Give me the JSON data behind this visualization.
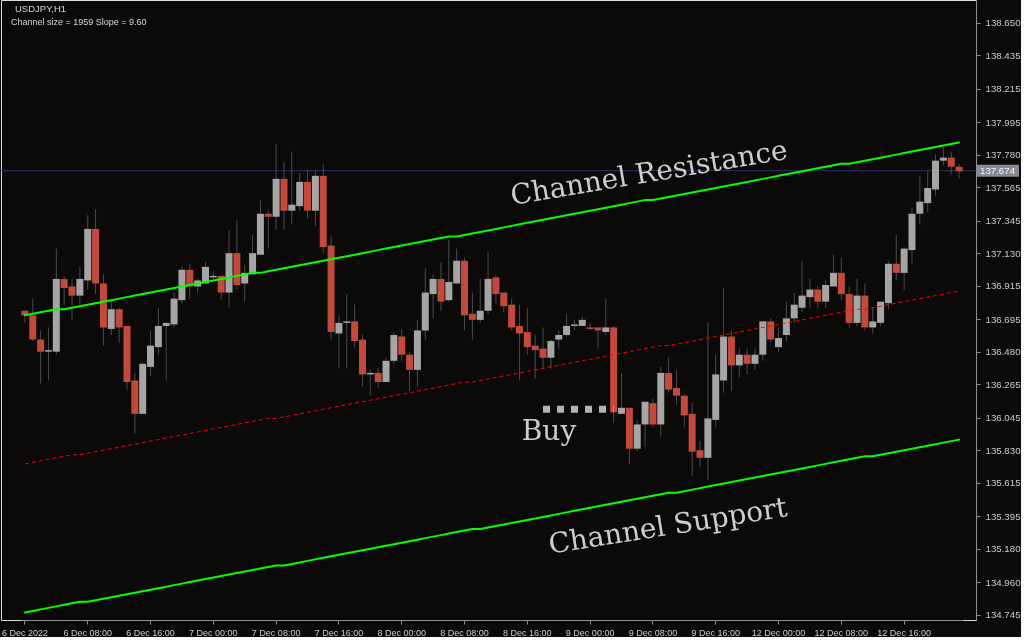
{
  "chart_data": {
    "type": "candlestick",
    "title": "USDJPY,H1",
    "subtitle": "Channel size = 1959 Slope = 9.60",
    "categories": [
      "6 Dec 2022",
      null,
      null,
      null,
      null,
      null,
      null,
      null,
      "6 Dec 08:00",
      null,
      null,
      null,
      null,
      null,
      null,
      null,
      "6 Dec 16:00",
      null,
      null,
      null,
      null,
      null,
      null,
      null,
      "7 Dec 00:00",
      null,
      null,
      null,
      null,
      null,
      null,
      null,
      "7 Dec 08:00",
      null,
      null,
      null,
      null,
      null,
      null,
      null,
      "7 Dec 16:00",
      null,
      null,
      null,
      null,
      null,
      null,
      null,
      "8 Dec 00:00",
      null,
      null,
      null,
      null,
      null,
      null,
      null,
      "8 Dec 08:00",
      null,
      null,
      null,
      null,
      null,
      null,
      null,
      "8 Dec 16:00",
      null,
      null,
      null,
      null,
      null,
      null,
      null,
      "9 Dec 00:00",
      null,
      null,
      null,
      null,
      null,
      null,
      null,
      "9 Dec 08:00",
      null,
      null,
      null,
      null,
      null,
      null,
      null,
      "9 Dec 16:00",
      null,
      null,
      null,
      null,
      null,
      null,
      null,
      "12 Dec 00:00",
      null,
      null,
      null,
      null,
      null,
      null,
      null,
      "12 Dec 08:00",
      null,
      null,
      null,
      null,
      null,
      null,
      null,
      "12 Dec 16:00",
      null,
      null,
      null,
      null,
      null,
      null,
      null
    ],
    "ohlc": [
      [
        136.75,
        136.75,
        136.67,
        136.72
      ],
      [
        136.72,
        136.83,
        136.55,
        136.56
      ],
      [
        136.56,
        136.62,
        136.27,
        136.48
      ],
      [
        136.48,
        136.64,
        136.29,
        136.49
      ],
      [
        136.48,
        137.16,
        136.46,
        136.96
      ],
      [
        136.96,
        136.98,
        136.79,
        136.9
      ],
      [
        136.91,
        136.96,
        136.69,
        136.85
      ],
      [
        136.85,
        137.04,
        136.79,
        136.96
      ],
      [
        136.95,
        137.38,
        136.89,
        137.29
      ],
      [
        137.29,
        137.42,
        136.86,
        136.93
      ],
      [
        136.93,
        136.99,
        136.52,
        136.64
      ],
      [
        136.63,
        136.82,
        136.59,
        136.76
      ],
      [
        136.76,
        136.77,
        136.54,
        136.64
      ],
      [
        136.65,
        136.65,
        136.23,
        136.28
      ],
      [
        136.29,
        136.34,
        135.94,
        136.07
      ],
      [
        136.07,
        136.41,
        136.07,
        136.4
      ],
      [
        136.38,
        136.62,
        136.32,
        136.52
      ],
      [
        136.51,
        136.77,
        136.46,
        136.65
      ],
      [
        136.65,
        136.67,
        136.29,
        136.67
      ],
      [
        136.66,
        136.87,
        136.64,
        136.83
      ],
      [
        136.82,
        137.04,
        136.8,
        137.02
      ],
      [
        137.02,
        137.06,
        136.83,
        136.91
      ],
      [
        136.91,
        136.96,
        136.87,
        136.95
      ],
      [
        136.93,
        137.07,
        136.93,
        137.04
      ],
      [
        136.97,
        137.01,
        136.96,
        136.98
      ],
      [
        136.98,
        136.98,
        136.82,
        136.87
      ],
      [
        136.87,
        137.28,
        136.77,
        137.13
      ],
      [
        137.13,
        137.35,
        136.89,
        136.92
      ],
      [
        136.93,
        137.05,
        136.81,
        137.0
      ],
      [
        136.99,
        137.25,
        136.99,
        137.13
      ],
      [
        137.12,
        137.48,
        137.12,
        137.39
      ],
      [
        137.39,
        137.41,
        137.16,
        137.37
      ],
      [
        137.37,
        137.85,
        137.29,
        137.62
      ],
      [
        137.62,
        137.73,
        137.29,
        137.41
      ],
      [
        137.41,
        137.8,
        137.32,
        137.45
      ],
      [
        137.44,
        137.66,
        137.41,
        137.6
      ],
      [
        137.6,
        137.68,
        137.36,
        137.41
      ],
      [
        137.41,
        137.67,
        137.31,
        137.64
      ],
      [
        137.64,
        137.72,
        137.13,
        137.17
      ],
      [
        137.18,
        137.24,
        136.56,
        136.61
      ],
      [
        136.6,
        136.72,
        136.37,
        136.67
      ],
      [
        136.67,
        136.86,
        136.37,
        136.68
      ],
      [
        136.68,
        136.79,
        136.51,
        136.55
      ],
      [
        136.56,
        136.59,
        136.25,
        136.33
      ],
      [
        136.33,
        136.36,
        136.19,
        136.34
      ],
      [
        136.34,
        136.37,
        136.24,
        136.28
      ],
      [
        136.28,
        136.44,
        136.28,
        136.42
      ],
      [
        136.42,
        136.61,
        136.4,
        136.59
      ],
      [
        136.58,
        136.63,
        136.42,
        136.46
      ],
      [
        136.46,
        136.48,
        136.22,
        136.36
      ],
      [
        136.36,
        136.69,
        136.25,
        136.62
      ],
      [
        136.62,
        137.03,
        136.56,
        136.87
      ],
      [
        136.86,
        136.99,
        136.7,
        136.96
      ],
      [
        136.96,
        137.07,
        136.75,
        136.81
      ],
      [
        136.82,
        137.22,
        136.81,
        136.94
      ],
      [
        136.93,
        137.16,
        136.93,
        137.08
      ],
      [
        137.08,
        137.1,
        136.62,
        136.72
      ],
      [
        136.73,
        136.87,
        136.56,
        136.69
      ],
      [
        136.69,
        136.96,
        136.67,
        136.75
      ],
      [
        136.75,
        137.14,
        136.73,
        136.96
      ],
      [
        136.97,
        136.98,
        136.8,
        136.86
      ],
      [
        136.87,
        136.87,
        136.74,
        136.78
      ],
      [
        136.79,
        136.83,
        136.62,
        136.64
      ],
      [
        136.65,
        136.79,
        136.29,
        136.6
      ],
      [
        136.61,
        136.77,
        136.46,
        136.51
      ],
      [
        136.52,
        136.59,
        136.3,
        136.49
      ],
      [
        136.5,
        136.64,
        136.37,
        136.44
      ],
      [
        136.44,
        136.56,
        136.37,
        136.55
      ],
      [
        136.56,
        136.62,
        136.5,
        136.59
      ],
      [
        136.59,
        136.73,
        136.58,
        136.65
      ],
      [
        136.65,
        136.69,
        136.62,
        136.66
      ],
      [
        136.65,
        136.71,
        136.65,
        136.69
      ],
      [
        136.64,
        136.67,
        136.62,
        136.63
      ],
      [
        136.64,
        136.64,
        136.5,
        136.62
      ],
      [
        136.61,
        136.83,
        136.59,
        136.64
      ],
      [
        136.64,
        136.65,
        136.01,
        136.08
      ],
      [
        136.07,
        136.34,
        136.07,
        136.11
      ],
      [
        136.11,
        136.11,
        135.74,
        135.84
      ],
      [
        135.84,
        136.03,
        135.82,
        136.0
      ],
      [
        136.0,
        136.15,
        135.85,
        136.15
      ],
      [
        136.14,
        136.17,
        135.98,
        136.0
      ],
      [
        136.0,
        136.38,
        135.92,
        136.34
      ],
      [
        136.34,
        136.44,
        136.21,
        136.23
      ],
      [
        136.24,
        136.36,
        136.13,
        136.19
      ],
      [
        136.19,
        136.2,
        135.98,
        136.06
      ],
      [
        136.07,
        136.14,
        135.66,
        135.82
      ],
      [
        135.83,
        135.89,
        135.72,
        135.78
      ],
      [
        135.78,
        136.67,
        135.63,
        136.04
      ],
      [
        136.03,
        136.46,
        135.98,
        136.33
      ],
      [
        136.29,
        136.9,
        136.21,
        136.58
      ],
      [
        136.58,
        136.62,
        136.22,
        136.39
      ],
      [
        136.39,
        136.5,
        136.31,
        136.46
      ],
      [
        136.46,
        136.5,
        136.33,
        136.4
      ],
      [
        136.4,
        136.5,
        136.36,
        136.46
      ],
      [
        136.46,
        136.68,
        136.42,
        136.68
      ],
      [
        136.68,
        136.7,
        136.54,
        136.56
      ],
      [
        136.51,
        136.64,
        136.48,
        136.57
      ],
      [
        136.59,
        136.81,
        136.55,
        136.7
      ],
      [
        136.7,
        136.87,
        136.67,
        136.79
      ],
      [
        136.77,
        137.08,
        136.74,
        136.85
      ],
      [
        136.84,
        136.96,
        136.77,
        136.89
      ],
      [
        136.89,
        136.91,
        136.77,
        136.81
      ],
      [
        136.81,
        136.95,
        136.77,
        136.92
      ],
      [
        136.91,
        137.12,
        136.91,
        137.0
      ],
      [
        137.0,
        137.1,
        136.82,
        136.86
      ],
      [
        136.86,
        136.91,
        136.64,
        136.67
      ],
      [
        136.67,
        136.96,
        136.65,
        136.85
      ],
      [
        136.85,
        136.93,
        136.62,
        136.64
      ],
      [
        136.64,
        136.77,
        136.6,
        136.68
      ],
      [
        136.67,
        136.81,
        136.65,
        136.81
      ],
      [
        136.8,
        137.08,
        136.76,
        137.06
      ],
      [
        137.06,
        137.25,
        136.95,
        137.0
      ],
      [
        137.0,
        137.17,
        136.89,
        137.16
      ],
      [
        137.15,
        137.43,
        137.06,
        137.39
      ],
      [
        137.39,
        137.64,
        137.32,
        137.47
      ],
      [
        137.46,
        137.67,
        137.4,
        137.56
      ],
      [
        137.55,
        137.78,
        137.51,
        137.74
      ],
      [
        137.74,
        137.83,
        137.71,
        137.76
      ],
      [
        137.76,
        137.8,
        137.65,
        137.7
      ],
      [
        137.7,
        137.72,
        137.62,
        137.67
      ]
    ],
    "colors": [
      "#c24a3b",
      "#c24a3b",
      "#c24a3b",
      "#a5a5a5",
      "#a5a5a5",
      "#c24a3b",
      "#c24a3b",
      "#a5a5a5",
      "#a5a5a5",
      "#c24a3b",
      "#c24a3b",
      "#a5a5a5",
      "#c24a3b",
      "#c24a3b",
      "#c24a3b",
      "#a5a5a5",
      "#a5a5a5",
      "#a5a5a5",
      "#a5a5a5",
      "#a5a5a5",
      "#a5a5a5",
      "#c24a3b",
      "#a5a5a5",
      "#a5a5a5",
      "#a5a5a5",
      "#c24a3b",
      "#a5a5a5",
      "#c24a3b",
      "#a5a5a5",
      "#a5a5a5",
      "#a5a5a5",
      "#c24a3b",
      "#a5a5a5",
      "#c24a3b",
      "#a5a5a5",
      "#a5a5a5",
      "#c24a3b",
      "#a5a5a5",
      "#c24a3b",
      "#c24a3b",
      "#a5a5a5",
      "#a5a5a5",
      "#c24a3b",
      "#c24a3b",
      "#a5a5a5",
      "#c24a3b",
      "#a5a5a5",
      "#a5a5a5",
      "#c24a3b",
      "#c24a3b",
      "#a5a5a5",
      "#a5a5a5",
      "#a5a5a5",
      "#c24a3b",
      "#a5a5a5",
      "#a5a5a5",
      "#c24a3b",
      "#c24a3b",
      "#a5a5a5",
      "#a5a5a5",
      "#c24a3b",
      "#c24a3b",
      "#c24a3b",
      "#c24a3b",
      "#c24a3b",
      "#c24a3b",
      "#c24a3b",
      "#a5a5a5",
      "#a5a5a5",
      "#a5a5a5",
      "#a5a5a5",
      "#a5a5a5",
      "#c24a3b",
      "#c24a3b",
      "#a5a5a5",
      "#c24a3b",
      "#a5a5a5",
      "#c24a3b",
      "#a5a5a5",
      "#a5a5a5",
      "#c24a3b",
      "#a5a5a5",
      "#c24a3b",
      "#c24a3b",
      "#c24a3b",
      "#c24a3b",
      "#c24a3b",
      "#a5a5a5",
      "#a5a5a5",
      "#a5a5a5",
      "#c24a3b",
      "#a5a5a5",
      "#c24a3b",
      "#a5a5a5",
      "#a5a5a5",
      "#c24a3b",
      "#a5a5a5",
      "#a5a5a5",
      "#a5a5a5",
      "#a5a5a5",
      "#a5a5a5",
      "#c24a3b",
      "#a5a5a5",
      "#a5a5a5",
      "#c24a3b",
      "#c24a3b",
      "#a5a5a5",
      "#c24a3b",
      "#a5a5a5",
      "#a5a5a5",
      "#a5a5a5",
      "#c24a3b",
      "#a5a5a5",
      "#a5a5a5",
      "#a5a5a5",
      "#a5a5a5",
      "#a5a5a5",
      "#a5a5a5",
      "#c24a3b",
      "#c24a3b"
    ],
    "color": "#4a4a52",
    "series": [
      {
        "type": "line",
        "color": "#00ff00",
        "values": [
          136.72,
          136.73,
          136.74,
          136.75,
          136.76,
          136.76,
          136.77,
          136.78,
          136.79,
          136.8,
          136.81,
          136.82,
          136.83,
          136.84,
          136.85,
          136.86,
          136.87,
          136.88,
          136.89,
          136.9,
          136.91,
          136.92,
          136.93,
          136.94,
          136.95,
          136.96,
          136.97,
          136.98,
          136.99,
          137.0,
          137.0,
          137.01,
          137.02,
          137.03,
          137.04,
          137.05,
          137.06,
          137.07,
          137.08,
          137.09,
          137.1,
          137.11,
          137.12,
          137.13,
          137.14,
          137.15,
          137.16,
          137.17,
          137.18,
          137.19,
          137.2,
          137.21,
          137.22,
          137.23,
          137.24,
          137.24,
          137.25,
          137.26,
          137.27,
          137.28,
          137.29,
          137.3,
          137.31,
          137.32,
          137.33,
          137.34,
          137.35,
          137.36,
          137.37,
          137.38,
          137.39,
          137.4,
          137.41,
          137.42,
          137.43,
          137.44,
          137.45,
          137.46,
          137.47,
          137.48,
          137.48,
          137.49,
          137.5,
          137.51,
          137.52,
          137.53,
          137.54,
          137.55,
          137.56,
          137.57,
          137.58,
          137.59,
          137.6,
          137.61,
          137.62,
          137.63,
          137.64,
          137.65,
          137.66,
          137.67,
          137.68,
          137.69,
          137.7,
          137.71,
          137.72,
          137.72,
          137.73,
          137.74,
          137.75,
          137.76,
          137.77,
          137.78,
          137.79,
          137.8,
          137.81,
          137.82,
          137.83,
          137.84,
          137.85,
          137.86
        ]
      },
      {
        "type": "line",
        "color": "#00ff00",
        "values": [
          134.76,
          134.77,
          134.78,
          134.79,
          134.8,
          134.81,
          134.82,
          134.83,
          134.83,
          134.84,
          134.85,
          134.86,
          134.87,
          134.88,
          134.89,
          134.9,
          134.91,
          134.92,
          134.93,
          134.94,
          134.95,
          134.96,
          134.97,
          134.98,
          134.99,
          135.0,
          135.01,
          135.02,
          135.03,
          135.04,
          135.05,
          135.06,
          135.07,
          135.07,
          135.08,
          135.09,
          135.1,
          135.11,
          135.12,
          135.13,
          135.14,
          135.15,
          135.16,
          135.17,
          135.18,
          135.19,
          135.2,
          135.21,
          135.22,
          135.23,
          135.24,
          135.25,
          135.26,
          135.27,
          135.28,
          135.29,
          135.3,
          135.31,
          135.31,
          135.32,
          135.33,
          135.34,
          135.35,
          135.36,
          135.37,
          135.38,
          135.39,
          135.4,
          135.41,
          135.42,
          135.43,
          135.44,
          135.45,
          135.46,
          135.47,
          135.48,
          135.49,
          135.5,
          135.51,
          135.52,
          135.53,
          135.54,
          135.55,
          135.55,
          135.56,
          135.57,
          135.58,
          135.59,
          135.6,
          135.61,
          135.62,
          135.63,
          135.64,
          135.65,
          135.66,
          135.67,
          135.68,
          135.69,
          135.7,
          135.71,
          135.72,
          135.73,
          135.74,
          135.75,
          135.76,
          135.77,
          135.78,
          135.79,
          135.79,
          135.8,
          135.81,
          135.82,
          135.83,
          135.84,
          135.85,
          135.86,
          135.87,
          135.88,
          135.89,
          135.9
        ]
      },
      {
        "type": "line",
        "color": "#ff0000",
        "line_style": "dashed",
        "values": [
          135.74,
          135.75,
          135.76,
          135.77,
          135.78,
          135.79,
          135.8,
          135.8,
          135.81,
          135.82,
          135.83,
          135.84,
          135.85,
          135.86,
          135.87,
          135.88,
          135.89,
          135.9,
          135.91,
          135.92,
          135.93,
          135.94,
          135.95,
          135.96,
          135.97,
          135.98,
          135.99,
          136.0,
          136.01,
          136.02,
          136.03,
          136.04,
          136.04,
          136.05,
          136.06,
          136.07,
          136.08,
          136.09,
          136.1,
          136.11,
          136.12,
          136.13,
          136.14,
          136.15,
          136.16,
          136.17,
          136.18,
          136.19,
          136.2,
          136.21,
          136.22,
          136.23,
          136.24,
          136.25,
          136.26,
          136.27,
          136.28,
          136.28,
          136.29,
          136.3,
          136.31,
          136.32,
          136.33,
          136.34,
          136.35,
          136.36,
          136.37,
          136.38,
          136.39,
          136.4,
          136.41,
          136.42,
          136.43,
          136.44,
          136.45,
          136.46,
          136.47,
          136.48,
          136.49,
          136.5,
          136.51,
          136.52,
          136.52,
          136.53,
          136.54,
          136.55,
          136.56,
          136.57,
          136.58,
          136.59,
          136.6,
          136.61,
          136.62,
          136.63,
          136.64,
          136.65,
          136.66,
          136.67,
          136.68,
          136.69,
          136.7,
          136.71,
          136.72,
          136.73,
          136.74,
          136.75,
          136.76,
          136.76,
          136.77,
          136.78,
          136.79,
          136.8,
          136.81,
          136.82,
          136.83,
          136.84,
          136.85,
          136.86,
          136.87,
          136.88
        ]
      },
      {
        "type": "line",
        "color": "#b4b4b4",
        "line_style": "dotted",
        "values": [
          null,
          null,
          null,
          null,
          null,
          null,
          null,
          null,
          null,
          null,
          null,
          null,
          null,
          null,
          null,
          null,
          null,
          null,
          null,
          null,
          null,
          null,
          null,
          null,
          null,
          null,
          null,
          null,
          null,
          null,
          null,
          null,
          null,
          null,
          null,
          null,
          null,
          null,
          null,
          null,
          null,
          null,
          null,
          null,
          null,
          null,
          null,
          null,
          null,
          null,
          null,
          null,
          null,
          null,
          null,
          null,
          null,
          null,
          null,
          null,
          null,
          null,
          null,
          null,
          null,
          null,
          136.1,
          136.1,
          136.1,
          136.1,
          136.1,
          136.1,
          136.1,
          136.1,
          136.1,
          136.1,
          null,
          null,
          null,
          null,
          null,
          null,
          null,
          null,
          null,
          null,
          null,
          null,
          null,
          null,
          null,
          null,
          null,
          null,
          null,
          null,
          null,
          null,
          null,
          null,
          null,
          null,
          null,
          null,
          null,
          null,
          null,
          null,
          null,
          null,
          null,
          null,
          null,
          null,
          null,
          null,
          null,
          null,
          null,
          null
        ]
      }
    ],
    "ylim": [
      134.71,
      138.8
    ],
    "yticks": [
      {
        "value": 138.65,
        "label": "138.650"
      },
      {
        "value": 138.435,
        "label": "138.435"
      },
      {
        "value": 138.215,
        "label": "138.215"
      },
      {
        "value": 137.995,
        "label": "137.995"
      },
      {
        "value": 137.78,
        "label": "137.780"
      },
      {
        "value": 137.565,
        "label": "137.565"
      },
      {
        "value": 137.345,
        "label": "137.345"
      },
      {
        "value": 137.13,
        "label": "137.130"
      },
      {
        "value": 136.915,
        "label": "136.915"
      },
      {
        "value": 136.695,
        "label": "136.695"
      },
      {
        "value": 136.48,
        "label": "136.480"
      },
      {
        "value": 136.265,
        "label": "136.265"
      },
      {
        "value": 136.045,
        "label": "136.045"
      },
      {
        "value": 135.83,
        "label": "135.830"
      },
      {
        "value": 135.615,
        "label": "135.615"
      },
      {
        "value": 135.395,
        "label": "135.395"
      },
      {
        "value": 135.18,
        "label": "135.180"
      },
      {
        "value": 134.96,
        "label": "134.960"
      },
      {
        "value": 134.745,
        "label": "134.745"
      }
    ],
    "ref_lines": [
      {
        "axis": "y",
        "value": 137.674,
        "label": "137.674",
        "color": "#2d3463"
      }
    ],
    "annotations": [
      "Channel Resistance",
      "Channel Support",
      "Buy"
    ]
  }
}
